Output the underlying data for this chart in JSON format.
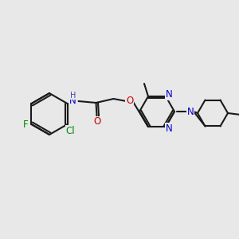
{
  "bg_color": "#e8e8e8",
  "bond_color": "#1a1a1a",
  "bond_width": 1.5,
  "atom_colors": {
    "N": "#0000cc",
    "O": "#cc0000",
    "F": "#008800",
    "Cl": "#008800",
    "H": "#4444aa",
    "C": "#1a1a1a"
  },
  "font_size": 8.5
}
